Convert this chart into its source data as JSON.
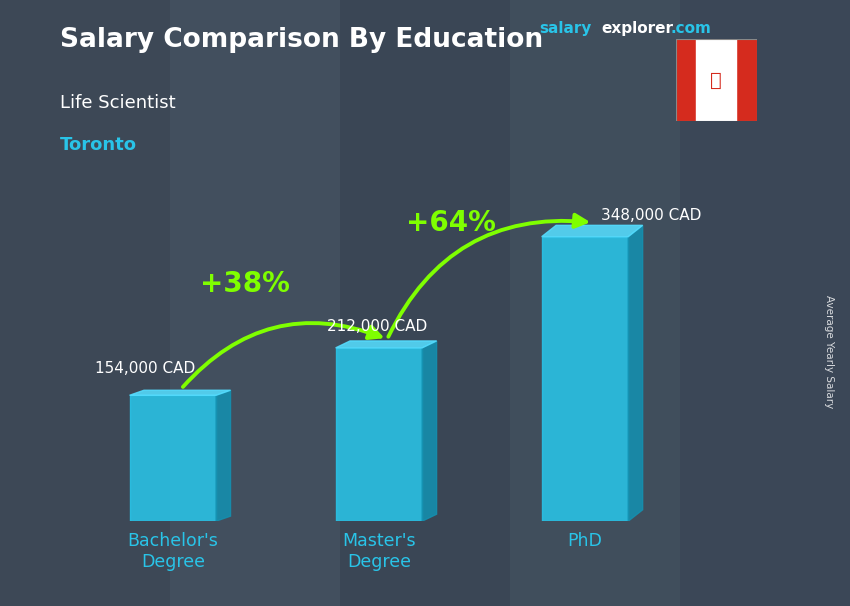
{
  "title": "Salary Comparison By Education",
  "subtitle": "Life Scientist",
  "location": "Toronto",
  "categories": [
    "Bachelor's\nDegree",
    "Master's\nDegree",
    "PhD"
  ],
  "values": [
    154000,
    212000,
    348000
  ],
  "value_labels": [
    "154,000 CAD",
    "212,000 CAD",
    "348,000 CAD"
  ],
  "bar_color_front": "#29C4E8",
  "bar_color_side": "#1490B0",
  "bar_color_top": "#55DDFF",
  "background_color": "#3a4555",
  "title_color": "#ffffff",
  "subtitle_color": "#ffffff",
  "location_color": "#29C4E8",
  "value_label_color": "#ffffff",
  "pct_labels": [
    "+38%",
    "+64%"
  ],
  "pct_color": "#7FFF00",
  "arrow_color": "#7FFF00",
  "website_salary_color": "#29C4E8",
  "website_explorer_color": "#ffffff",
  "website_com_color": "#29C4E8",
  "xtick_color": "#29C4E8",
  "ylabel": "Average Yearly Salary",
  "ylim": [
    0,
    430000
  ],
  "figsize": [
    8.5,
    6.06
  ],
  "dpi": 100,
  "bar_positions": [
    0,
    1,
    2
  ],
  "bar_width": 0.42,
  "depth": 0.06
}
